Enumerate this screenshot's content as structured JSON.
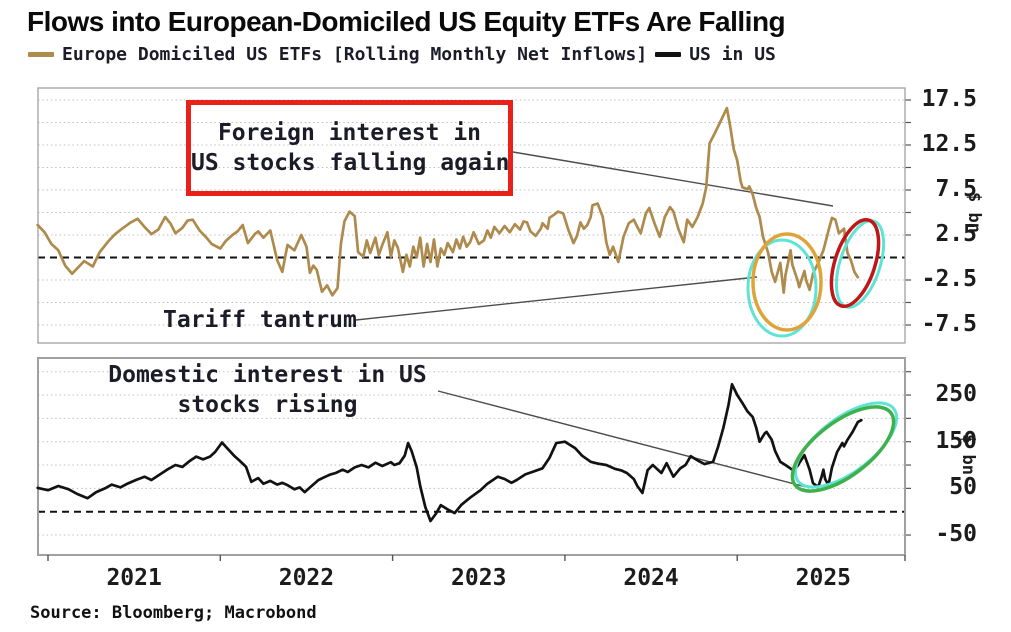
{
  "title": "Flows into European-Domiciled US Equity ETFs Are Falling",
  "legend": [
    {
      "label": "Europe Domiciled US ETFs [Rolling Monthly Net Inflows]",
      "color": "#AE8A4C"
    },
    {
      "label": "US in US",
      "color": "#121212"
    }
  ],
  "source": "Source: Bloomberg; Macrobond",
  "annotations": {
    "boxed_line1": "Foreign interest in",
    "boxed_line2": "US stocks falling again",
    "box_color": "#e8221a",
    "tariff": "Tariff tantrum",
    "domestic_line1": "Domestic interest in US",
    "domestic_line2": "stocks rising"
  },
  "colors": {
    "europe_line": "#AE8A4C",
    "us_line": "#121212",
    "gridline": "#bfbfbf",
    "frame": "#a0a0a0",
    "zero_line": "#111111",
    "annotation_line": "#4d4d4d",
    "orange_ellipse": "#DEA439",
    "red_ellipse": "#BF1717",
    "green_ellipse": "#3FB04B",
    "cyan_shadow": "#5FE3D5"
  },
  "x_axis": {
    "tick_years": [
      2021,
      2022,
      2023,
      2024,
      2025
    ],
    "labels": [
      "2021",
      "2022",
      "2023",
      "2024",
      "2025"
    ]
  },
  "chart_data": [
    {
      "type": "line",
      "panel": "top",
      "name": "Europe Domiciled US ETFs [Rolling Monthly Net Inflows]",
      "color": "#AE8A4C",
      "ylabel": "$ bn",
      "ylim": [
        -9.5,
        18.8
      ],
      "xlim": [
        2020.94,
        2025.97
      ],
      "y_tick_values": [
        17.5,
        12.5,
        7.5,
        2.5,
        -2.5,
        -7.5
      ],
      "y_gridlines": [
        17.5,
        15,
        12.5,
        10,
        7.5,
        5,
        2.5,
        -2.5,
        -5,
        -7.5
      ],
      "zero_dashed": true,
      "points": [
        [
          2020.94,
          3.6
        ],
        [
          2020.98,
          2.8
        ],
        [
          2021.02,
          1.5
        ],
        [
          2021.06,
          0.8
        ],
        [
          2021.1,
          -0.9
        ],
        [
          2021.14,
          -1.8
        ],
        [
          2021.17,
          -1.2
        ],
        [
          2021.21,
          -0.4
        ],
        [
          2021.26,
          -1.0
        ],
        [
          2021.3,
          0.6
        ],
        [
          2021.35,
          1.8
        ],
        [
          2021.39,
          2.6
        ],
        [
          2021.43,
          3.2
        ],
        [
          2021.48,
          3.9
        ],
        [
          2021.52,
          4.3
        ],
        [
          2021.56,
          3.4
        ],
        [
          2021.6,
          2.6
        ],
        [
          2021.64,
          3.1
        ],
        [
          2021.68,
          4.5
        ],
        [
          2021.71,
          3.8
        ],
        [
          2021.74,
          2.7
        ],
        [
          2021.78,
          3.3
        ],
        [
          2021.81,
          4.1
        ],
        [
          2021.84,
          4.2
        ],
        [
          2021.88,
          3.0
        ],
        [
          2021.92,
          2.2
        ],
        [
          2021.95,
          1.5
        ],
        [
          2022.0,
          1.0
        ],
        [
          2022.03,
          1.8
        ],
        [
          2022.07,
          2.5
        ],
        [
          2022.1,
          2.9
        ],
        [
          2022.13,
          3.6
        ],
        [
          2022.16,
          1.6
        ],
        [
          2022.2,
          2.6
        ],
        [
          2022.22,
          2.9
        ],
        [
          2022.25,
          2.2
        ],
        [
          2022.29,
          3.0
        ],
        [
          2022.33,
          -0.3
        ],
        [
          2022.36,
          -1.6
        ],
        [
          2022.39,
          1.4
        ],
        [
          2022.43,
          0.8
        ],
        [
          2022.47,
          2.5
        ],
        [
          2022.5,
          1.2
        ],
        [
          2022.52,
          -1.7
        ],
        [
          2022.54,
          -0.9
        ],
        [
          2022.56,
          -1.4
        ],
        [
          2022.59,
          -3.8
        ],
        [
          2022.62,
          -3.1
        ],
        [
          2022.65,
          -4.2
        ],
        [
          2022.68,
          -3.4
        ],
        [
          2022.7,
          1.5
        ],
        [
          2022.72,
          4.0
        ],
        [
          2022.75,
          5.1
        ],
        [
          2022.78,
          4.6
        ],
        [
          2022.8,
          0.6
        ],
        [
          2022.83,
          0.1
        ],
        [
          2022.85,
          1.9
        ],
        [
          2022.87,
          0.5
        ],
        [
          2022.9,
          2.2
        ],
        [
          2022.92,
          0.3
        ],
        [
          2022.94,
          1.4
        ],
        [
          2022.97,
          2.8
        ],
        [
          2022.99,
          0.1
        ],
        [
          2023.01,
          1.9
        ],
        [
          2023.03,
          1.1
        ],
        [
          2023.06,
          -1.6
        ],
        [
          2023.08,
          0.3
        ],
        [
          2023.1,
          -1.0
        ],
        [
          2023.12,
          1.2
        ],
        [
          2023.14,
          0.0
        ],
        [
          2023.16,
          2.2
        ],
        [
          2023.18,
          -1.0
        ],
        [
          2023.2,
          1.5
        ],
        [
          2023.22,
          -0.5
        ],
        [
          2023.24,
          2.0
        ],
        [
          2023.26,
          -1.0
        ],
        [
          2023.28,
          1.0
        ],
        [
          2023.3,
          0.3
        ],
        [
          2023.32,
          1.6
        ],
        [
          2023.35,
          0.6
        ],
        [
          2023.37,
          2.0
        ],
        [
          2023.39,
          1.0
        ],
        [
          2023.41,
          2.3
        ],
        [
          2023.43,
          1.2
        ],
        [
          2023.45,
          1.7
        ],
        [
          2023.47,
          2.8
        ],
        [
          2023.5,
          1.5
        ],
        [
          2023.53,
          1.9
        ],
        [
          2023.55,
          3.0
        ],
        [
          2023.57,
          2.2
        ],
        [
          2023.59,
          3.4
        ],
        [
          2023.62,
          2.7
        ],
        [
          2023.65,
          3.5
        ],
        [
          2023.68,
          2.8
        ],
        [
          2023.71,
          3.7
        ],
        [
          2023.74,
          3.1
        ],
        [
          2023.76,
          4.0
        ],
        [
          2023.78,
          3.9
        ],
        [
          2023.8,
          2.9
        ],
        [
          2023.83,
          2.4
        ],
        [
          2023.86,
          3.2
        ],
        [
          2023.87,
          3.8
        ],
        [
          2023.9,
          3.2
        ],
        [
          2023.91,
          4.4
        ],
        [
          2023.94,
          4.8
        ],
        [
          2023.96,
          5.1
        ],
        [
          2023.99,
          4.9
        ],
        [
          2024.02,
          3.1
        ],
        [
          2024.05,
          1.6
        ],
        [
          2024.07,
          2.4
        ],
        [
          2024.09,
          3.9
        ],
        [
          2024.11,
          3.2
        ],
        [
          2024.13,
          3.6
        ],
        [
          2024.15,
          4.5
        ],
        [
          2024.16,
          5.8
        ],
        [
          2024.19,
          6.0
        ],
        [
          2024.22,
          4.5
        ],
        [
          2024.24,
          1.7
        ],
        [
          2024.26,
          0.3
        ],
        [
          2024.28,
          1.2
        ],
        [
          2024.31,
          -0.5
        ],
        [
          2024.34,
          2.3
        ],
        [
          2024.37,
          3.8
        ],
        [
          2024.4,
          4.2
        ],
        [
          2024.42,
          3.4
        ],
        [
          2024.44,
          2.7
        ],
        [
          2024.47,
          4.9
        ],
        [
          2024.49,
          5.5
        ],
        [
          2024.52,
          3.8
        ],
        [
          2024.55,
          2.3
        ],
        [
          2024.58,
          4.5
        ],
        [
          2024.61,
          5.6
        ],
        [
          2024.63,
          5.1
        ],
        [
          2024.66,
          3.1
        ],
        [
          2024.69,
          1.7
        ],
        [
          2024.71,
          4.2
        ],
        [
          2024.74,
          3.4
        ],
        [
          2024.77,
          4.5
        ],
        [
          2024.8,
          6.0
        ],
        [
          2024.82,
          7.8
        ],
        [
          2024.84,
          12.7
        ],
        [
          2024.87,
          13.8
        ],
        [
          2024.88,
          14.2
        ],
        [
          2024.9,
          15.0
        ],
        [
          2024.92,
          15.8
        ],
        [
          2024.94,
          16.6
        ],
        [
          2024.96,
          14.5
        ],
        [
          2024.98,
          12.0
        ],
        [
          2025.0,
          10.8
        ],
        [
          2025.02,
          8.5
        ],
        [
          2025.03,
          7.8
        ],
        [
          2025.06,
          7.6
        ],
        [
          2025.07,
          7.9
        ],
        [
          2025.09,
          7.0
        ],
        [
          2025.11,
          5.5
        ],
        [
          2025.13,
          4.5
        ],
        [
          2025.15,
          2.3
        ],
        [
          2025.18,
          0.5
        ],
        [
          2025.2,
          -1.6
        ],
        [
          2025.22,
          -2.7
        ],
        [
          2025.25,
          -0.6
        ],
        [
          2025.27,
          -3.9
        ],
        [
          2025.28,
          -2.0
        ],
        [
          2025.31,
          0.8
        ],
        [
          2025.32,
          -0.8
        ],
        [
          2025.35,
          -2.5
        ],
        [
          2025.36,
          -3.3
        ],
        [
          2025.39,
          -1.5
        ],
        [
          2025.4,
          -2.5
        ],
        [
          2025.42,
          -3.6
        ],
        [
          2025.44,
          -1.8
        ],
        [
          2025.47,
          -0.6
        ],
        [
          2025.5,
          0.8
        ],
        [
          2025.53,
          3.0
        ],
        [
          2025.55,
          4.4
        ],
        [
          2025.57,
          4.2
        ],
        [
          2025.59,
          2.7
        ],
        [
          2025.62,
          3.2
        ],
        [
          2025.64,
          0.5
        ],
        [
          2025.66,
          -0.3
        ],
        [
          2025.68,
          -1.6
        ],
        [
          2025.7,
          -2.2
        ]
      ]
    },
    {
      "type": "line",
      "panel": "bottom",
      "name": "US in US",
      "color": "#121212",
      "ylabel": "$ bn",
      "ylim": [
        -93,
        329
      ],
      "xlim": [
        2020.94,
        2025.97
      ],
      "y_tick_values": [
        250,
        150,
        50,
        -50
      ],
      "y_gridlines": [
        300,
        250,
        200,
        150,
        100,
        50,
        -50
      ],
      "zero_dashed": true,
      "points": [
        [
          2020.94,
          51
        ],
        [
          2021.0,
          46
        ],
        [
          2021.06,
          55
        ],
        [
          2021.12,
          48
        ],
        [
          2021.17,
          38
        ],
        [
          2021.23,
          29
        ],
        [
          2021.28,
          42
        ],
        [
          2021.33,
          50
        ],
        [
          2021.37,
          58
        ],
        [
          2021.42,
          52
        ],
        [
          2021.46,
          60
        ],
        [
          2021.51,
          68
        ],
        [
          2021.56,
          75
        ],
        [
          2021.6,
          68
        ],
        [
          2021.65,
          80
        ],
        [
          2021.7,
          92
        ],
        [
          2021.74,
          100
        ],
        [
          2021.78,
          96
        ],
        [
          2021.82,
          108
        ],
        [
          2021.86,
          118
        ],
        [
          2021.9,
          112
        ],
        [
          2021.94,
          118
        ],
        [
          2021.97,
          128
        ],
        [
          2022.01,
          148
        ],
        [
          2022.05,
          132
        ],
        [
          2022.08,
          120
        ],
        [
          2022.11,
          110
        ],
        [
          2022.15,
          96
        ],
        [
          2022.18,
          64
        ],
        [
          2022.22,
          72
        ],
        [
          2022.25,
          60
        ],
        [
          2022.29,
          66
        ],
        [
          2022.33,
          58
        ],
        [
          2022.36,
          62
        ],
        [
          2022.39,
          57
        ],
        [
          2022.43,
          48
        ],
        [
          2022.46,
          52
        ],
        [
          2022.49,
          42
        ],
        [
          2022.53,
          55
        ],
        [
          2022.57,
          68
        ],
        [
          2022.61,
          75
        ],
        [
          2022.64,
          80
        ],
        [
          2022.67,
          83
        ],
        [
          2022.71,
          90
        ],
        [
          2022.74,
          85
        ],
        [
          2022.78,
          95
        ],
        [
          2022.82,
          100
        ],
        [
          2022.86,
          95
        ],
        [
          2022.9,
          105
        ],
        [
          2022.94,
          98
        ],
        [
          2022.99,
          106
        ],
        [
          2023.01,
          100
        ],
        [
          2023.04,
          104
        ],
        [
          2023.07,
          120
        ],
        [
          2023.09,
          147
        ],
        [
          2023.11,
          130
        ],
        [
          2023.14,
          95
        ],
        [
          2023.16,
          55
        ],
        [
          2023.19,
          10
        ],
        [
          2023.22,
          -20
        ],
        [
          2023.25,
          -5
        ],
        [
          2023.28,
          14
        ],
        [
          2023.32,
          5
        ],
        [
          2023.36,
          -3
        ],
        [
          2023.4,
          15
        ],
        [
          2023.45,
          30
        ],
        [
          2023.51,
          46
        ],
        [
          2023.55,
          60
        ],
        [
          2023.61,
          75
        ],
        [
          2023.65,
          70
        ],
        [
          2023.69,
          62
        ],
        [
          2023.72,
          68
        ],
        [
          2023.77,
          80
        ],
        [
          2023.81,
          85
        ],
        [
          2023.87,
          93
        ],
        [
          2023.91,
          115
        ],
        [
          2023.95,
          147
        ],
        [
          2024.0,
          150
        ],
        [
          2024.03,
          143
        ],
        [
          2024.06,
          136
        ],
        [
          2024.1,
          120
        ],
        [
          2024.15,
          107
        ],
        [
          2024.19,
          103
        ],
        [
          2024.24,
          100
        ],
        [
          2024.29,
          92
        ],
        [
          2024.33,
          88
        ],
        [
          2024.36,
          83
        ],
        [
          2024.4,
          70
        ],
        [
          2024.42,
          55
        ],
        [
          2024.45,
          40
        ],
        [
          2024.48,
          89
        ],
        [
          2024.51,
          100
        ],
        [
          2024.54,
          90
        ],
        [
          2024.56,
          83
        ],
        [
          2024.59,
          104
        ],
        [
          2024.63,
          75
        ],
        [
          2024.67,
          93
        ],
        [
          2024.7,
          100
        ],
        [
          2024.73,
          119
        ],
        [
          2024.77,
          110
        ],
        [
          2024.81,
          102
        ],
        [
          2024.86,
          107
        ],
        [
          2024.89,
          140
        ],
        [
          2024.92,
          180
        ],
        [
          2024.95,
          230
        ],
        [
          2024.97,
          273
        ],
        [
          2025.0,
          250
        ],
        [
          2025.03,
          233
        ],
        [
          2025.06,
          215
        ],
        [
          2025.09,
          203
        ],
        [
          2025.11,
          180
        ],
        [
          2025.13,
          150
        ],
        [
          2025.16,
          168
        ],
        [
          2025.17,
          171
        ],
        [
          2025.2,
          154
        ],
        [
          2025.22,
          130
        ],
        [
          2025.25,
          107
        ],
        [
          2025.28,
          100
        ],
        [
          2025.3,
          95
        ],
        [
          2025.32,
          90
        ],
        [
          2025.35,
          98
        ],
        [
          2025.36,
          104
        ],
        [
          2025.39,
          121
        ],
        [
          2025.42,
          90
        ],
        [
          2025.44,
          61
        ],
        [
          2025.47,
          53
        ],
        [
          2025.49,
          75
        ],
        [
          2025.5,
          90
        ],
        [
          2025.51,
          70
        ],
        [
          2025.53,
          57
        ],
        [
          2025.55,
          95
        ],
        [
          2025.58,
          128
        ],
        [
          2025.61,
          147
        ],
        [
          2025.62,
          140
        ],
        [
          2025.64,
          154
        ],
        [
          2025.67,
          171
        ],
        [
          2025.7,
          192
        ],
        [
          2025.72,
          196
        ]
      ]
    }
  ]
}
